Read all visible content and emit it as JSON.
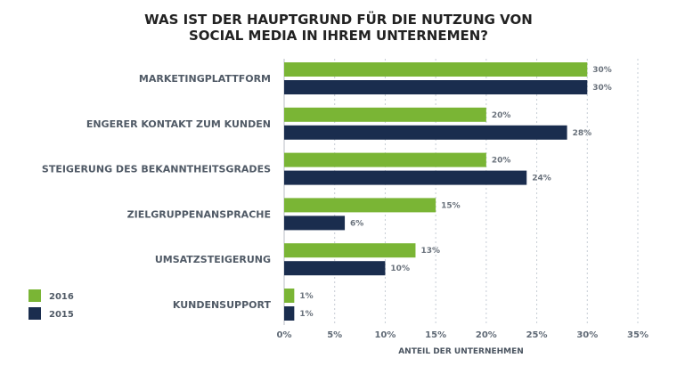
{
  "chart_data": {
    "type": "bar",
    "orientation": "horizontal",
    "title": [
      "WAS IST DER HAUPTGRUND FÜR DIE NUTZUNG VON",
      "SOCIAL MEDIA IN IHREM UNTERNEMEN?"
    ],
    "categories": [
      "MARKETINGPLATTFORM",
      "ENGERER KONTAKT ZUM KUNDEN",
      "STEIGERUNG DES BEKANNTHEITSGRADES",
      "ZIELGRUPPENANSPRACHE",
      "UMSATZSTEIGERUNG",
      "KUNDENSUPPORT"
    ],
    "series": [
      {
        "name": "2016",
        "color": "#7ab535",
        "values": [
          30,
          20,
          20,
          15,
          13,
          1
        ],
        "labels": [
          "30%",
          "20%",
          "20%",
          "15%",
          "13%",
          "1%"
        ]
      },
      {
        "name": "2015",
        "color": "#1a2d4e",
        "values": [
          30,
          28,
          24,
          6,
          10,
          1
        ],
        "labels": [
          "30%",
          "28%",
          "24%",
          "6%",
          "10%",
          "1%"
        ]
      }
    ],
    "xlabel": "ANTEIL DER UNTERNEHMEN",
    "xlim": [
      0,
      35
    ],
    "xticks": [
      "0%",
      "5%",
      "10%",
      "15%",
      "20%",
      "25%",
      "30%",
      "35%"
    ],
    "grid": "vertical dashed",
    "legend_position": "bottom-left"
  }
}
